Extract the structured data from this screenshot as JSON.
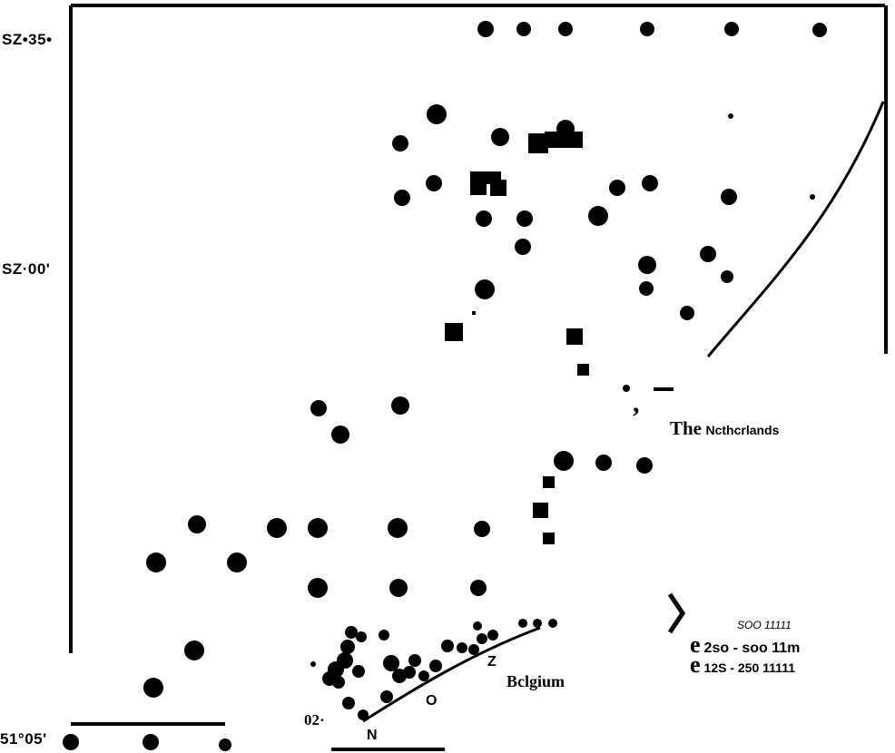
{
  "map": {
    "lat_labels": {
      "top": "SZ•35•",
      "middle": "SZ·00'",
      "bottom": "51°05'"
    },
    "country_netherlands_article": "The",
    "country_netherlands_name": "Ncthcrlands",
    "country_belgium": "Bclgium",
    "station_code": "02·",
    "coast_letters": {
      "n": "N",
      "o": "O",
      "z": "Z"
    },
    "marker_comma": ","
  },
  "legend": {
    "items": [
      {
        "symbol": "",
        "label": "SOO 11111"
      },
      {
        "symbol": "e",
        "label": "2so - soo 11m"
      },
      {
        "symbol": "e",
        "label": "12S - 250 11111"
      }
    ]
  },
  "colors": {
    "ink": "#000000",
    "paper": "#ffffff"
  }
}
